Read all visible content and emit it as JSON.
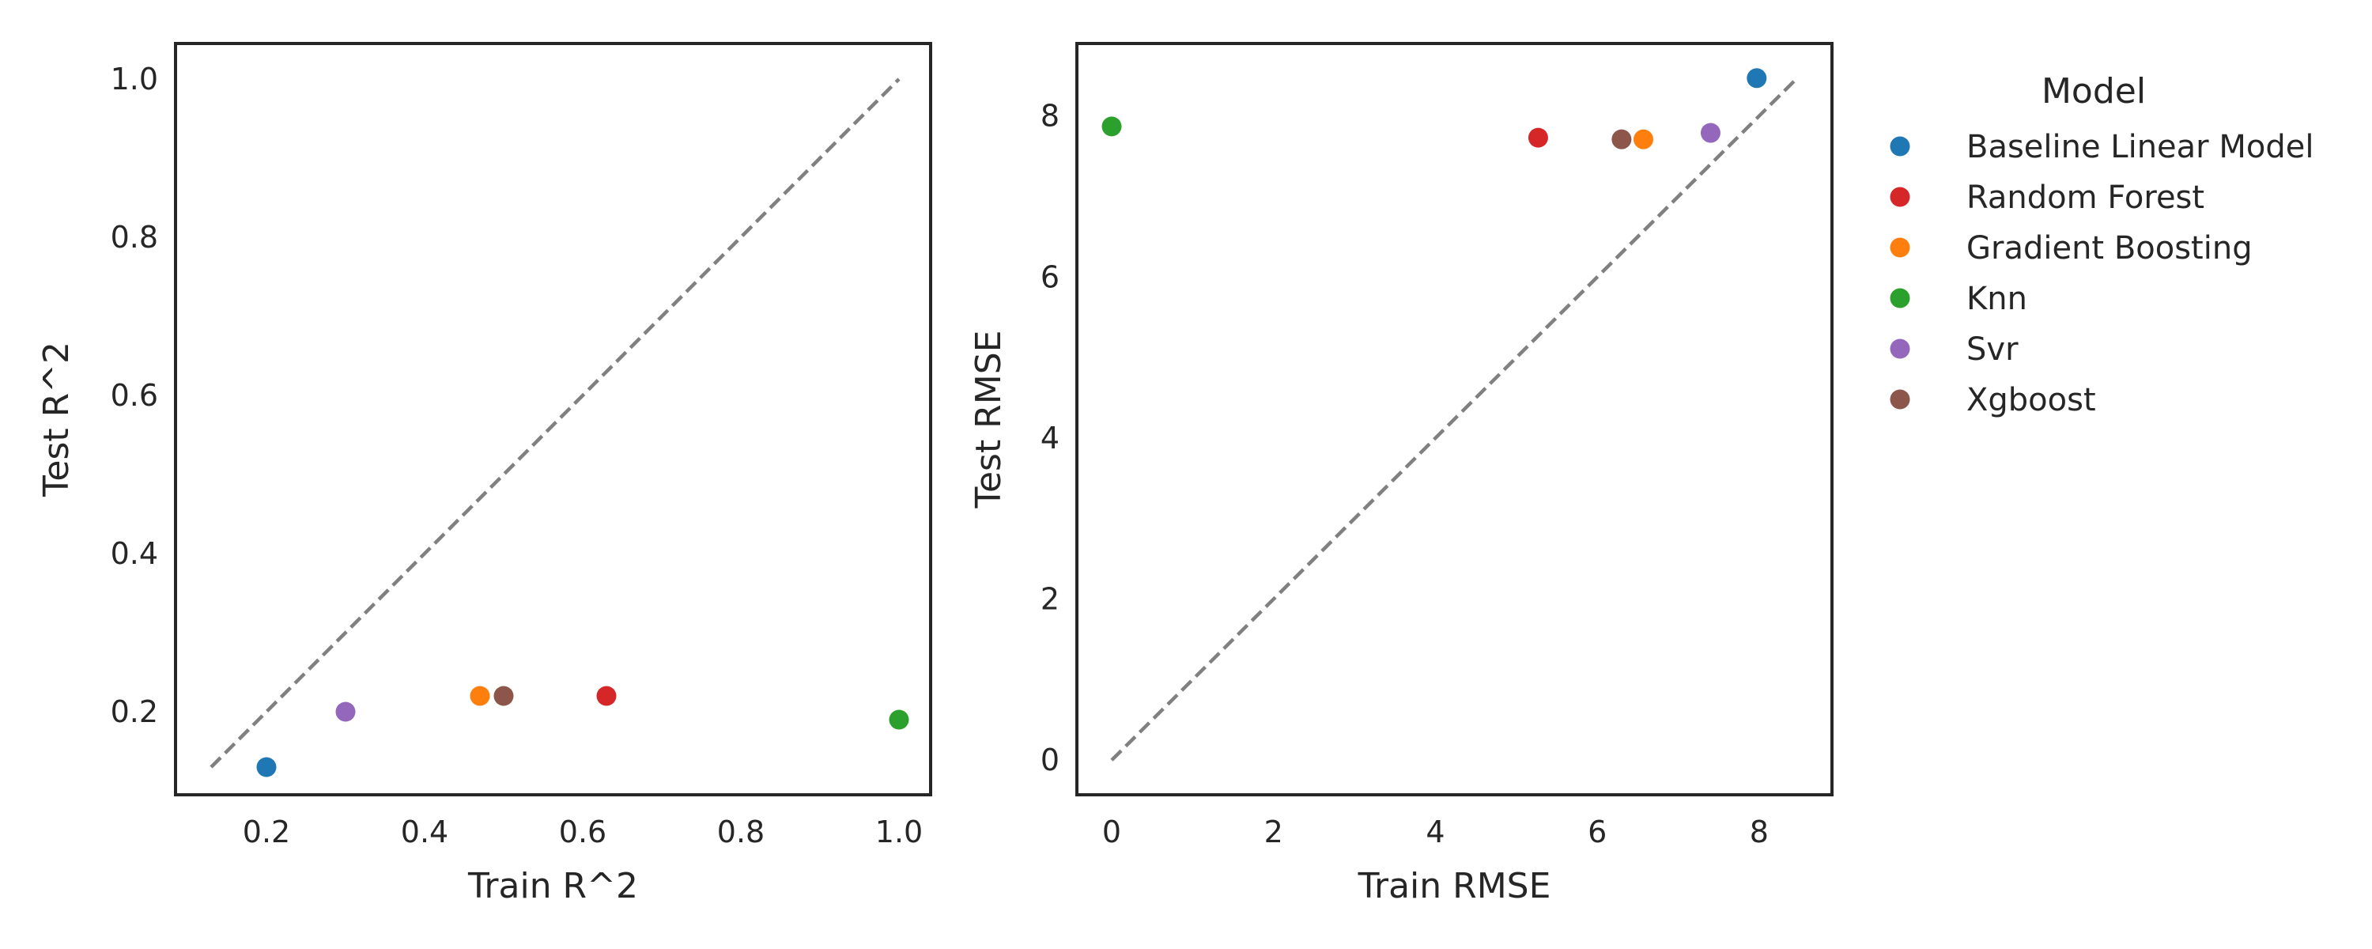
{
  "chart_data": [
    {
      "type": "scatter",
      "xlabel": "Train R^2",
      "ylabel": "Test R^2",
      "xlim": [
        0.085,
        1.04
      ],
      "ylim": [
        0.095,
        1.045
      ],
      "xticks": [
        "0.2",
        "0.4",
        "0.6",
        "0.8",
        "1.0"
      ],
      "yticks": [
        "0.2",
        "0.4",
        "0.6",
        "0.8",
        "1.0"
      ],
      "reference_line": {
        "style": "dashed",
        "color": "#808080",
        "x": [
          0.13,
          1.0
        ],
        "y": [
          0.13,
          1.0
        ]
      },
      "grid": false,
      "points": [
        {
          "model": "Baseline Linear Model",
          "x": 0.2,
          "y": 0.13
        },
        {
          "model": "Random Forest",
          "x": 0.63,
          "y": 0.22
        },
        {
          "model": "Gradient Boosting",
          "x": 0.47,
          "y": 0.22
        },
        {
          "model": "Knn",
          "x": 1.0,
          "y": 0.19
        },
        {
          "model": "Svr",
          "x": 0.3,
          "y": 0.2
        },
        {
          "model": "Xgboost",
          "x": 0.5,
          "y": 0.22
        }
      ]
    },
    {
      "type": "scatter",
      "xlabel": "Train RMSE",
      "ylabel": "Test RMSE",
      "xlim": [
        -0.43,
        8.9
      ],
      "ylim": [
        -0.43,
        8.9
      ],
      "xticks": [
        "0",
        "2",
        "4",
        "6",
        "8"
      ],
      "yticks": [
        "0",
        "2",
        "4",
        "6",
        "8"
      ],
      "reference_line": {
        "style": "dashed",
        "color": "#808080",
        "x": [
          0.0,
          8.45
        ],
        "y": [
          0.0,
          8.45
        ]
      },
      "grid": false,
      "points": [
        {
          "model": "Baseline Linear Model",
          "x": 7.97,
          "y": 8.47
        },
        {
          "model": "Random Forest",
          "x": 5.27,
          "y": 7.73
        },
        {
          "model": "Gradient Boosting",
          "x": 6.57,
          "y": 7.71
        },
        {
          "model": "Knn",
          "x": 0.0,
          "y": 7.87
        },
        {
          "model": "Svr",
          "x": 7.4,
          "y": 7.79
        },
        {
          "model": "Xgboost",
          "x": 6.3,
          "y": 7.71
        }
      ]
    }
  ],
  "legend": {
    "title": "Model",
    "placement": "outside-right",
    "entries": [
      {
        "label": "Baseline Linear Model",
        "color": "#1f77b4"
      },
      {
        "label": "Random Forest",
        "color": "#d62728"
      },
      {
        "label": "Gradient Boosting",
        "color": "#ff7f0e"
      },
      {
        "label": "Knn",
        "color": "#2ca02c"
      },
      {
        "label": "Svr",
        "color": "#9467bd"
      },
      {
        "label": "Xgboost",
        "color": "#8c564b"
      }
    ]
  }
}
